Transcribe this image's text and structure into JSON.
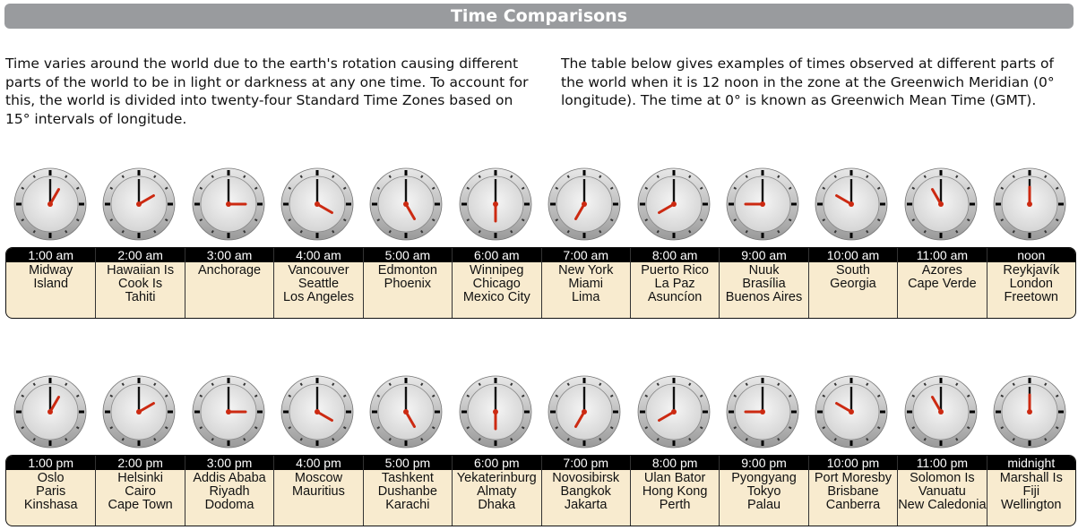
{
  "title": "Time Comparisons",
  "intro_left": "Time varies around the world due to the earth's rotation causing different parts of the world to be in light or darkness at any one time. To account for this, the world is divided into twenty-four Standard Time Zones based on 15° intervals of longitude.",
  "intro_right": "The table below gives examples of times observed at different parts of the world when it is 12 noon in the zone at the Greenwich Meridian (0° longitude). The time at 0° is known as Greenwich Mean Time (GMT).",
  "rows": [
    [
      {
        "time": "1:00 am",
        "hour": 1,
        "places": [
          "Midway",
          "Island"
        ]
      },
      {
        "time": "2:00 am",
        "hour": 2,
        "places": [
          "Hawaiian Is",
          "Cook Is",
          "Tahiti"
        ]
      },
      {
        "time": "3:00 am",
        "hour": 3,
        "places": [
          "Anchorage"
        ]
      },
      {
        "time": "4:00 am",
        "hour": 4,
        "places": [
          "Vancouver",
          "Seattle",
          "Los Angeles"
        ]
      },
      {
        "time": "5:00 am",
        "hour": 5,
        "places": [
          "Edmonton",
          "Phoenix"
        ]
      },
      {
        "time": "6:00 am",
        "hour": 6,
        "places": [
          "Winnipeg",
          "Chicago",
          "Mexico City"
        ]
      },
      {
        "time": "7:00 am",
        "hour": 7,
        "places": [
          "New York",
          "Miami",
          "Lima"
        ]
      },
      {
        "time": "8:00 am",
        "hour": 8,
        "places": [
          "Puerto Rico",
          "La Paz",
          "Asuncíon"
        ]
      },
      {
        "time": "9:00 am",
        "hour": 9,
        "places": [
          "Nuuk",
          "Brasília",
          "Buenos Aires"
        ]
      },
      {
        "time": "10:00 am",
        "hour": 10,
        "places": [
          "South",
          "Georgia"
        ]
      },
      {
        "time": "11:00 am",
        "hour": 11,
        "places": [
          "Azores",
          "Cape Verde"
        ]
      },
      {
        "time": "noon",
        "hour": 12,
        "places": [
          "Reykjavík",
          "London",
          "Freetown"
        ]
      }
    ],
    [
      {
        "time": "1:00 pm",
        "hour": 1,
        "places": [
          "Oslo",
          "Paris",
          "Kinshasa"
        ]
      },
      {
        "time": "2:00 pm",
        "hour": 2,
        "places": [
          "Helsinki",
          "Cairo",
          "Cape Town"
        ]
      },
      {
        "time": "3:00 pm",
        "hour": 3,
        "places": [
          "Addis Ababa",
          "Riyadh",
          "Dodoma"
        ]
      },
      {
        "time": "4:00 pm",
        "hour": 4,
        "places": [
          "Moscow",
          "Mauritius"
        ]
      },
      {
        "time": "5:00 pm",
        "hour": 5,
        "places": [
          "Tashkent",
          "Dushanbe",
          "Karachi"
        ]
      },
      {
        "time": "6:00 pm",
        "hour": 6,
        "places": [
          "Yekaterinburg",
          "Almaty",
          "Dhaka"
        ]
      },
      {
        "time": "7:00 pm",
        "hour": 7,
        "places": [
          "Novosibirsk",
          "Bangkok",
          "Jakarta"
        ]
      },
      {
        "time": "8:00 pm",
        "hour": 8,
        "places": [
          "Ulan Bator",
          "Hong Kong",
          "Perth"
        ]
      },
      {
        "time": "9:00 pm",
        "hour": 9,
        "places": [
          "Pyongyang",
          "Tokyo",
          "Palau"
        ]
      },
      {
        "time": "10:00 pm",
        "hour": 10,
        "places": [
          "Port Moresby",
          "Brisbane",
          "Canberra"
        ]
      },
      {
        "time": "11:00 pm",
        "hour": 11,
        "places": [
          "Solomon Is",
          "Vanuatu",
          "New Caledonia"
        ]
      },
      {
        "time": "midnight",
        "hour": 12,
        "places": [
          "Marshall Is",
          "Fiji",
          "Wellington"
        ]
      }
    ]
  ],
  "colors": {
    "title_bar": "#999b9e",
    "table_fill": "#f8ebcf",
    "hour_hand": "#cc2a12",
    "minute_hand": "#111111"
  }
}
